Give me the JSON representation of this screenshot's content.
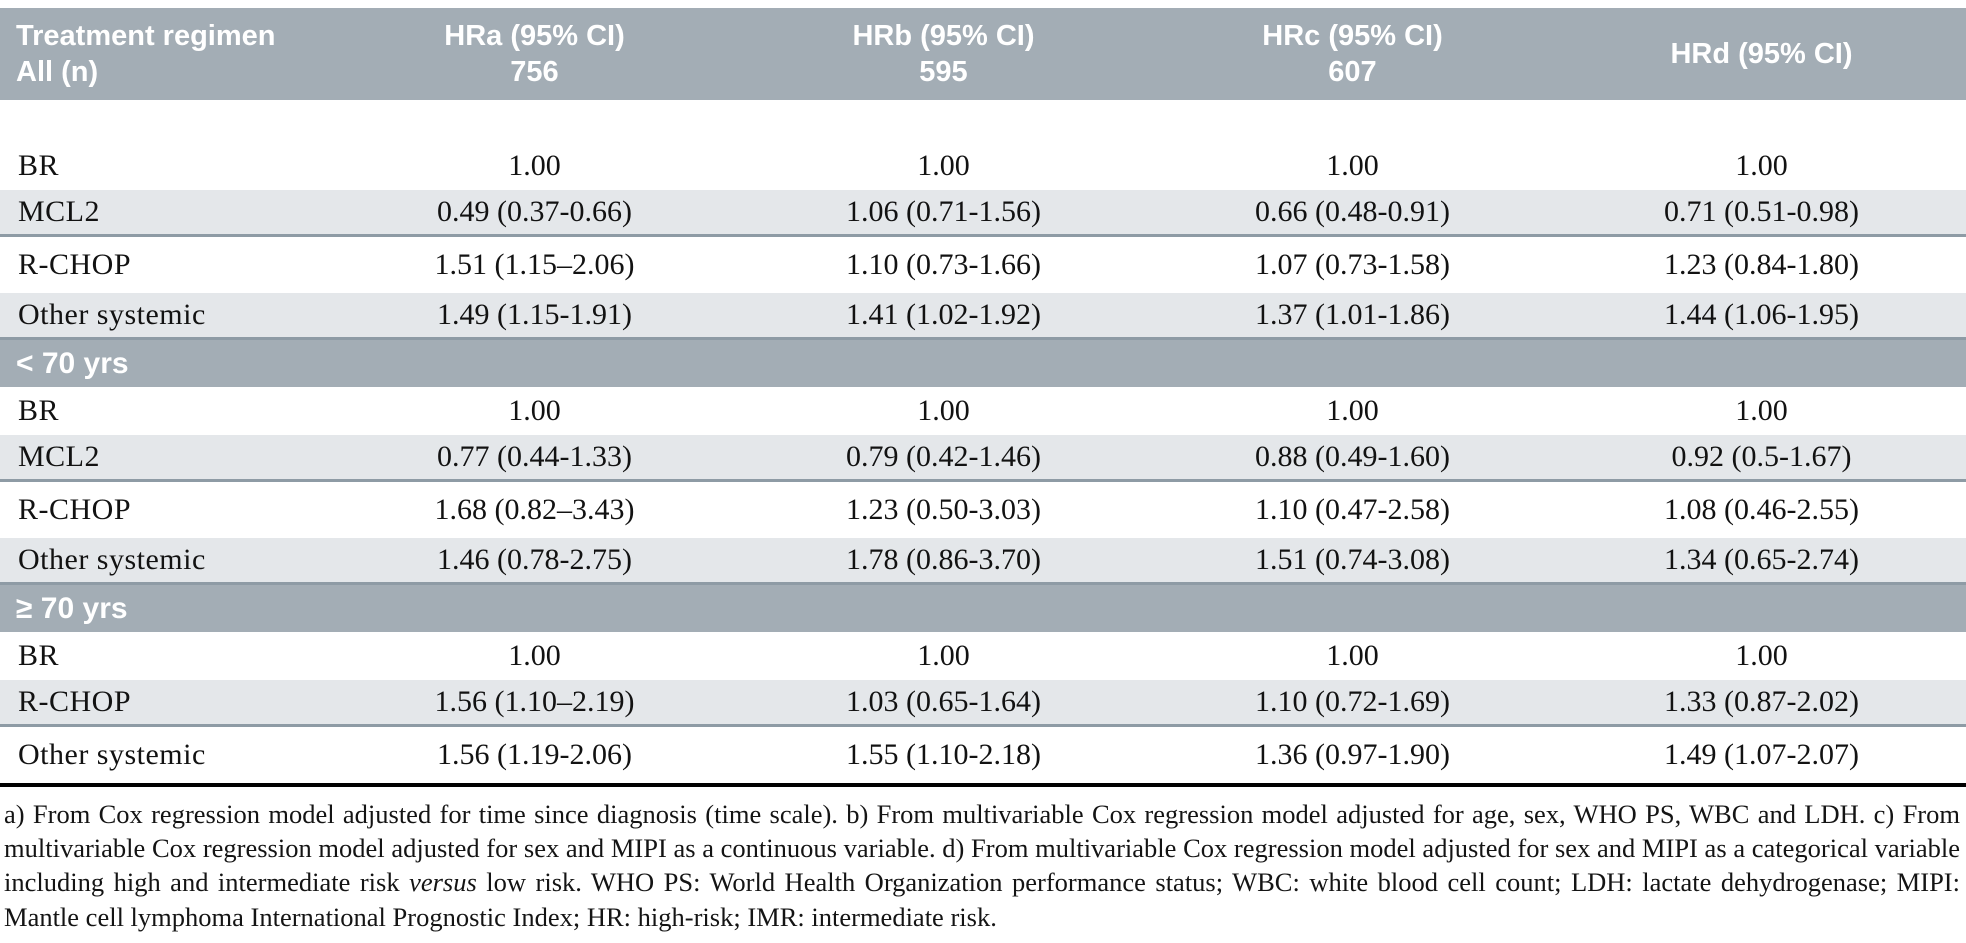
{
  "table": {
    "header": {
      "col0_line1": "Treatment regimen",
      "col0_line2": "All (n)",
      "columns": [
        {
          "line1": "HRa (95% CI)",
          "line2": "756"
        },
        {
          "line1": "HRb (95% CI)",
          "line2": "595"
        },
        {
          "line1": "HRc (95% CI)",
          "line2": "607"
        },
        {
          "line1": "HRd (95% CI)",
          "line2": ""
        }
      ]
    },
    "sections": [
      {
        "title": "",
        "rows": [
          {
            "label": "BR",
            "values": [
              "1.00",
              "1.00",
              "1.00",
              "1.00"
            ]
          },
          {
            "label": "MCL2",
            "values": [
              "0.49 (0.37-0.66)",
              "1.06 (0.71-1.56)",
              "0.66 (0.48-0.91)",
              "0.71 (0.51-0.98)"
            ]
          },
          {
            "label": "R-CHOP",
            "values": [
              "1.51 (1.15–2.06)",
              "1.10 (0.73-1.66)",
              "1.07 (0.73-1.58)",
              "1.23 (0.84-1.80)"
            ]
          },
          {
            "label": "Other systemic",
            "values": [
              "1.49 (1.15-1.91)",
              "1.41 (1.02-1.92)",
              "1.37 (1.01-1.86)",
              "1.44 (1.06-1.95)"
            ]
          }
        ]
      },
      {
        "title": "< 70 yrs",
        "rows": [
          {
            "label": "BR",
            "values": [
              "1.00",
              "1.00",
              "1.00",
              "1.00"
            ]
          },
          {
            "label": "MCL2",
            "values": [
              "0.77 (0.44-1.33)",
              "0.79 (0.42-1.46)",
              "0.88 (0.49-1.60)",
              "0.92 (0.5-1.67)"
            ]
          },
          {
            "label": "R-CHOP",
            "values": [
              "1.68 (0.82–3.43)",
              "1.23 (0.50-3.03)",
              "1.10 (0.47-2.58)",
              "1.08 (0.46-2.55)"
            ]
          },
          {
            "label": "Other systemic",
            "values": [
              "1.46 (0.78-2.75)",
              "1.78 (0.86-3.70)",
              "1.51 (0.74-3.08)",
              "1.34 (0.65-2.74)"
            ]
          }
        ]
      },
      {
        "title": "≥ 70 yrs",
        "rows": [
          {
            "label": "BR",
            "values": [
              "1.00",
              "1.00",
              "1.00",
              "1.00"
            ]
          },
          {
            "label": "R-CHOP",
            "values": [
              "1.56 (1.10–2.19)",
              "1.03 (0.65-1.64)",
              "1.10 (0.72-1.69)",
              "1.33 (0.87-2.02)"
            ]
          },
          {
            "label": "Other systemic",
            "values": [
              "1.56 (1.19-2.06)",
              "1.55 (1.10-2.18)",
              "1.36 (0.97-1.90)",
              "1.49 (1.07-2.07)"
            ]
          }
        ]
      }
    ]
  },
  "footnotes": {
    "part1": "a) From Cox regression model adjusted for time since diagnosis (time scale). b) From multivariable Cox regression model adjusted for age, sex, WHO PS, WBC and LDH. c) From multivariable Cox regression model adjusted for sex and MIPI as a continuous variable. d) From multivariable Cox regression model adjusted for sex and MIPI as a categorical variable including high and intermediate risk ",
    "versus_word": "versus",
    "part2": " low risk. WHO PS: World Health Organization performance status; WBC: white blood cell count; LDH: lactate dehydrogenase; MIPI: Mantle cell lymphoma International Prognostic Index; HR: high-risk; IMR: intermediate risk."
  }
}
